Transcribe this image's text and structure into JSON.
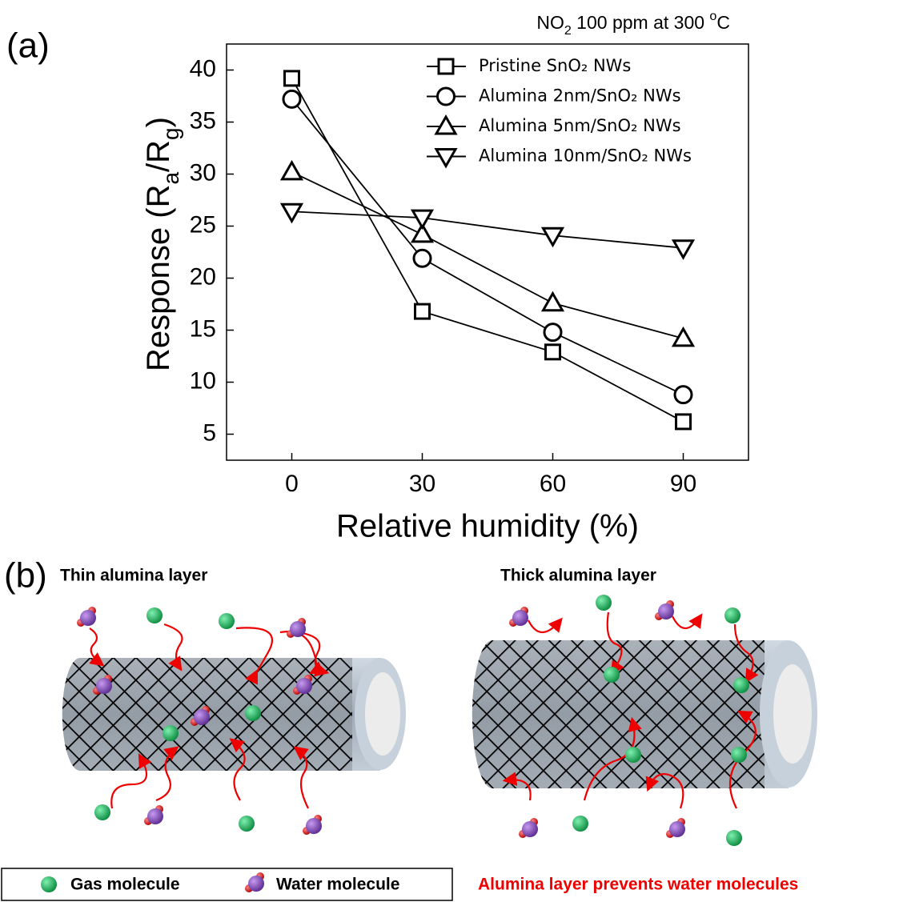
{
  "panel_a_label": "(a)",
  "panel_b_label": "(b)",
  "chart_data": {
    "type": "line",
    "title": [
      "NO",
      "2",
      " 100 ppm at 300 ",
      "o",
      "C"
    ],
    "x_label": "Relative humidity (%)",
    "y_label": [
      "Response (R",
      "a",
      "/R",
      "g",
      ")"
    ],
    "x": [
      0,
      30,
      60,
      90
    ],
    "xlim": [
      -15,
      105
    ],
    "xticks": [
      0,
      30,
      60,
      90
    ],
    "ylim": [
      2.5,
      42.5
    ],
    "yticks": [
      5,
      10,
      15,
      20,
      25,
      30,
      35,
      40
    ],
    "legend": "upper right",
    "series": [
      {
        "name": "Pristine SnO₂ NWs",
        "color": "#000000",
        "marker": "square",
        "values": [
          39.2,
          16.8,
          12.9,
          6.2
        ]
      },
      {
        "name": "Alumina 2nm/SnO₂ NWs",
        "color": "#000000",
        "marker": "circle",
        "values": [
          37.2,
          21.9,
          14.8,
          8.8
        ]
      },
      {
        "name": "Alumina 5nm/SnO₂ NWs",
        "color": "#000000",
        "marker": "triangle-up",
        "values": [
          30.2,
          24.2,
          17.6,
          14.2
        ]
      },
      {
        "name": "Alumina 10nm/SnO₂ NWs",
        "color": "#000000",
        "marker": "triangle-down",
        "values": [
          26.4,
          25.8,
          24.1,
          22.9
        ]
      }
    ]
  },
  "diagram": {
    "left_title": "Thin alumina layer",
    "right_title": "Thick alumina layer",
    "legend": [
      "Gas molecule",
      "Water molecule"
    ],
    "caption": "Alumina layer prevents water molecules"
  }
}
